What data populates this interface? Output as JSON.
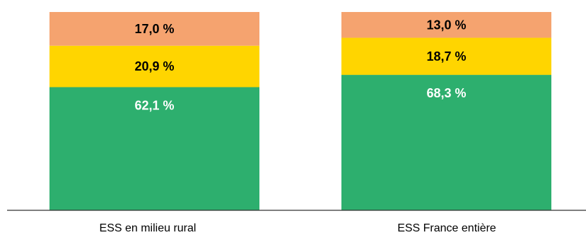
{
  "chart_data": {
    "type": "bar",
    "stacked": true,
    "categories": [
      "ESS en milieu rural",
      "ESS France entière"
    ],
    "series": [
      {
        "values": [
          62.1,
          68.3
        ],
        "labels": [
          "62,1 %",
          "68,3 %"
        ],
        "color": "#2daf6e",
        "label_color": "#ffffff"
      },
      {
        "values": [
          20.9,
          18.7
        ],
        "labels": [
          "20,9 %",
          "18,7 %"
        ],
        "color": "#ffd500",
        "label_color": "#000000"
      },
      {
        "values": [
          17.0,
          13.0
        ],
        "labels": [
          "17,0 %",
          "13,0 %"
        ],
        "color": "#f5a36f",
        "label_color": "#000000"
      }
    ],
    "ylim": [
      0,
      100
    ],
    "grid": false,
    "legend": "none"
  }
}
